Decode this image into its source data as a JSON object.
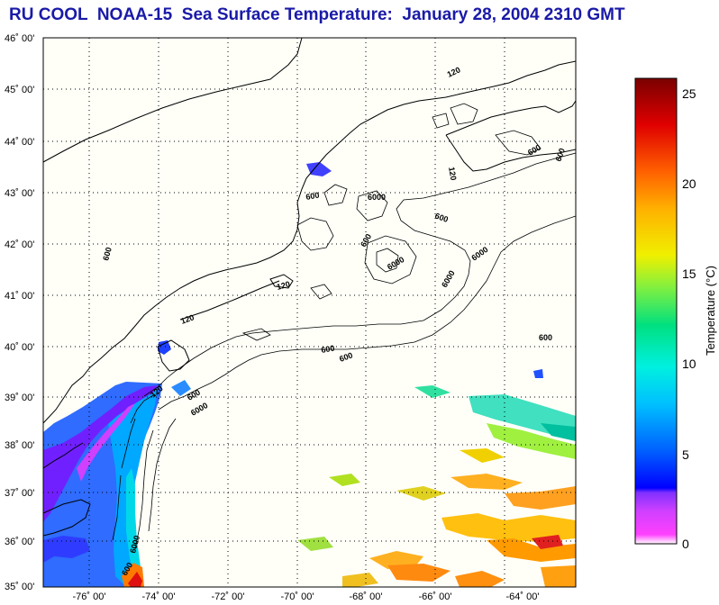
{
  "title": "RU COOL  NOAA-15  Sea Surface Temperature:  January 28, 2004 2310 GMT",
  "map": {
    "lat_ticks": [
      "46˚ 00'",
      "45˚ 00'",
      "44˚ 00'",
      "43˚ 00'",
      "42˚ 00'",
      "41˚ 00'",
      "40˚ 00'",
      "39˚ 00'",
      "38˚ 00'",
      "37˚ 00'",
      "36˚ 00'",
      "35˚ 00'"
    ],
    "lon_ticks": [
      "-76˚ 00'",
      "-74˚ 00'",
      "-72˚ 00'",
      "-70˚ 00'",
      "-68˚ 00'",
      "-66˚ 00'",
      "-64˚ 00'"
    ],
    "contour_labels": [
      "120",
      "600",
      "600",
      "6000",
      "600",
      "6000",
      "600",
      "6000",
      "120",
      "600",
      "120",
      "600",
      "600",
      "120",
      "600",
      "6000",
      "120",
      "6000",
      "600",
      "600",
      "6000",
      "600"
    ]
  },
  "colorbar": {
    "title": "Temperature (°C)",
    "ticks": [
      "25",
      "20",
      "15",
      "10",
      "5",
      "0"
    ],
    "min": 0,
    "max": 26
  }
}
